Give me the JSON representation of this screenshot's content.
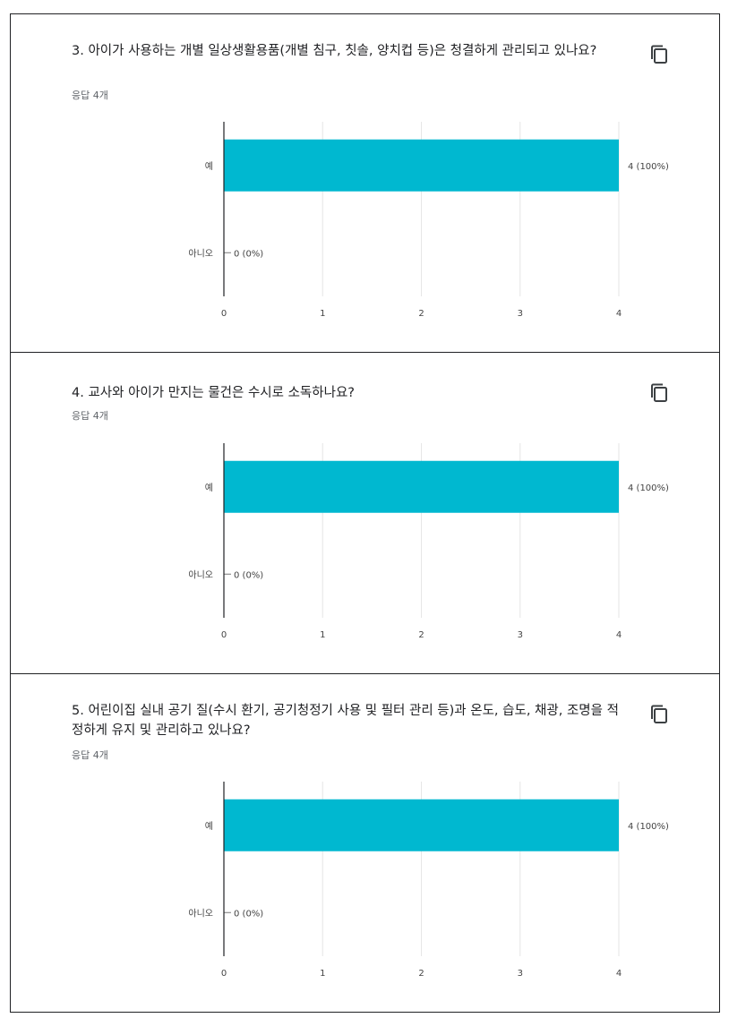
{
  "questions": [
    {
      "title": "3. 아이가 사용하는 개별 일상생활용품(개별 침구, 칫솔, 양치컵 등)은 청결하게 관리되고 있나요?",
      "responses": "응답 4개"
    },
    {
      "title": "4. 교사와 아이가 만지는 물건은 수시로 소독하나요?",
      "responses": "응답 4개"
    },
    {
      "title": "5. 어린이집 실내 공기 질(수시 환기, 공기청정기 사용 및 필터 관리 등)과 온도, 습도, 채광, 조명을 적정하게 유지 및 관리하고 있나요?",
      "responses": "응답 4개"
    }
  ],
  "icons": {
    "copy": "copy-icon"
  },
  "colors": {
    "bar": "#00b8d0",
    "axis": "#202124",
    "grid": "#e6e6e6",
    "label": "#444444"
  },
  "chart_data": [
    {
      "type": "bar",
      "orientation": "horizontal",
      "categories": [
        "예",
        "아니오"
      ],
      "values": [
        4,
        0
      ],
      "data_labels": [
        "4 (100%)",
        "0 (0%)"
      ],
      "xlim": [
        0,
        4
      ],
      "xticks": [
        "0",
        "1",
        "2",
        "3",
        "4"
      ],
      "grid": true
    },
    {
      "type": "bar",
      "orientation": "horizontal",
      "categories": [
        "예",
        "아니오"
      ],
      "values": [
        4,
        0
      ],
      "data_labels": [
        "4 (100%)",
        "0 (0%)"
      ],
      "xlim": [
        0,
        4
      ],
      "xticks": [
        "0",
        "1",
        "2",
        "3",
        "4"
      ],
      "grid": true
    },
    {
      "type": "bar",
      "orientation": "horizontal",
      "categories": [
        "예",
        "아니오"
      ],
      "values": [
        4,
        0
      ],
      "data_labels": [
        "4 (100%)",
        "0 (0%)"
      ],
      "xlim": [
        0,
        4
      ],
      "xticks": [
        "0",
        "1",
        "2",
        "3",
        "4"
      ],
      "grid": true
    }
  ]
}
